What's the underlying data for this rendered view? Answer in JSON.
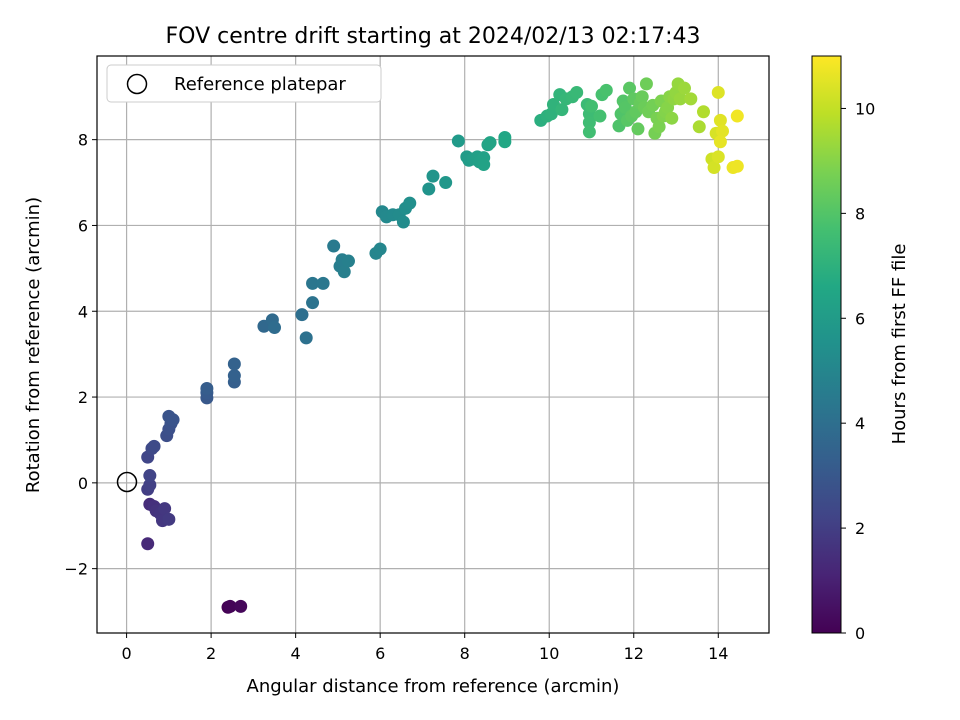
{
  "chart_data": {
    "type": "scatter",
    "title": "FOV centre drift starting at 2024/02/13 02:17:43",
    "xlabel": "Angular distance from reference (arcmin)",
    "ylabel": "Rotation from reference (arcmin)",
    "colorbar_label": "Hours from first FF file",
    "xlim": [
      -0.7,
      15.2
    ],
    "ylim": [
      -3.5,
      9.95
    ],
    "x_ticks": [
      0,
      2,
      4,
      6,
      8,
      10,
      12,
      14
    ],
    "y_ticks": [
      -2,
      0,
      2,
      4,
      6,
      8
    ],
    "colorbar_range": [
      0,
      11
    ],
    "colorbar_ticks": [
      0,
      2,
      4,
      6,
      8,
      10
    ],
    "colormap": "viridis",
    "grid": true,
    "legend": {
      "placement": "top-left",
      "entries": [
        "Reference platepar"
      ]
    },
    "reference_point": {
      "x": 0,
      "y": 0,
      "label": "Reference platepar"
    },
    "points": [
      [
        2.4,
        -2.9,
        0.0
      ],
      [
        2.45,
        -2.88,
        0.1
      ],
      [
        2.7,
        -2.88,
        0.2
      ],
      [
        0.5,
        -1.42,
        1.3
      ],
      [
        0.55,
        -0.5,
        1.4
      ],
      [
        0.65,
        -0.55,
        1.5
      ],
      [
        0.7,
        -0.65,
        1.6
      ],
      [
        0.8,
        -0.72,
        1.7
      ],
      [
        0.85,
        -0.88,
        1.75
      ],
      [
        0.9,
        -0.6,
        1.8
      ],
      [
        1.0,
        -0.85,
        1.85
      ],
      [
        0.5,
        -0.15,
        2.0
      ],
      [
        0.55,
        -0.05,
        2.1
      ],
      [
        0.55,
        0.17,
        2.2
      ],
      [
        0.5,
        0.6,
        2.3
      ],
      [
        0.6,
        0.8,
        2.4
      ],
      [
        0.65,
        0.85,
        2.45
      ],
      [
        0.95,
        1.1,
        2.6
      ],
      [
        1.0,
        1.25,
        2.7
      ],
      [
        1.05,
        1.38,
        2.75
      ],
      [
        1.0,
        1.55,
        2.8
      ],
      [
        1.1,
        1.47,
        2.85
      ],
      [
        1.9,
        1.98,
        3.0
      ],
      [
        1.9,
        2.1,
        3.1
      ],
      [
        1.9,
        2.2,
        3.2
      ],
      [
        2.55,
        2.35,
        3.3
      ],
      [
        2.55,
        2.5,
        3.4
      ],
      [
        2.55,
        2.77,
        3.45
      ],
      [
        3.25,
        3.65,
        3.7
      ],
      [
        3.45,
        3.8,
        3.8
      ],
      [
        3.5,
        3.62,
        3.85
      ],
      [
        4.15,
        3.92,
        4.0
      ],
      [
        4.25,
        3.38,
        4.1
      ],
      [
        4.4,
        4.2,
        4.2
      ],
      [
        4.4,
        4.65,
        4.3
      ],
      [
        4.65,
        4.65,
        4.35
      ],
      [
        4.9,
        5.52,
        4.5
      ],
      [
        5.05,
        5.05,
        4.6
      ],
      [
        5.1,
        5.2,
        4.65
      ],
      [
        5.15,
        4.92,
        4.7
      ],
      [
        5.25,
        5.17,
        4.75
      ],
      [
        5.9,
        5.35,
        4.95
      ],
      [
        6.0,
        5.45,
        5.0
      ],
      [
        6.05,
        6.32,
        5.1
      ],
      [
        6.15,
        6.2,
        5.15
      ],
      [
        6.3,
        6.25,
        5.2
      ],
      [
        6.45,
        6.25,
        5.25
      ],
      [
        6.55,
        6.08,
        5.3
      ],
      [
        6.6,
        6.4,
        5.35
      ],
      [
        6.7,
        6.52,
        5.4
      ],
      [
        7.15,
        6.85,
        5.6
      ],
      [
        7.25,
        7.15,
        5.7
      ],
      [
        7.55,
        7.0,
        5.8
      ],
      [
        7.85,
        7.97,
        5.95
      ],
      [
        8.05,
        7.6,
        6.0
      ],
      [
        8.1,
        7.52,
        6.05
      ],
      [
        8.2,
        7.55,
        6.1
      ],
      [
        8.3,
        7.6,
        6.15
      ],
      [
        8.35,
        7.48,
        6.2
      ],
      [
        8.45,
        7.58,
        6.25
      ],
      [
        8.45,
        7.42,
        6.3
      ],
      [
        8.55,
        7.88,
        6.35
      ],
      [
        8.6,
        7.93,
        6.4
      ],
      [
        8.95,
        8.05,
        6.5
      ],
      [
        8.95,
        7.95,
        6.55
      ],
      [
        9.8,
        8.45,
        6.9
      ],
      [
        9.95,
        8.55,
        7.0
      ],
      [
        10.05,
        8.6,
        7.05
      ],
      [
        10.1,
        8.82,
        7.1
      ],
      [
        10.25,
        9.05,
        7.15
      ],
      [
        10.3,
        8.7,
        7.2
      ],
      [
        10.4,
        8.95,
        7.25
      ],
      [
        10.55,
        9.0,
        7.3
      ],
      [
        10.65,
        9.1,
        7.35
      ],
      [
        10.9,
        8.82,
        7.45
      ],
      [
        10.95,
        8.6,
        7.5
      ],
      [
        10.95,
        8.4,
        7.55
      ],
      [
        10.95,
        8.18,
        7.6
      ],
      [
        11.0,
        8.78,
        7.65
      ],
      [
        11.2,
        8.55,
        7.7
      ],
      [
        11.25,
        9.05,
        7.75
      ],
      [
        11.35,
        9.15,
        7.8
      ],
      [
        11.65,
        8.32,
        7.9
      ],
      [
        11.7,
        8.6,
        7.95
      ],
      [
        11.75,
        8.9,
        8.0
      ],
      [
        11.8,
        8.75,
        8.05
      ],
      [
        11.85,
        8.45,
        8.1
      ],
      [
        11.9,
        9.2,
        8.15
      ],
      [
        11.95,
        8.55,
        8.2
      ],
      [
        12.0,
        8.95,
        8.25
      ],
      [
        12.05,
        8.65,
        8.3
      ],
      [
        12.1,
        8.25,
        8.35
      ],
      [
        12.15,
        8.85,
        8.4
      ],
      [
        12.2,
        9.0,
        8.45
      ],
      [
        12.25,
        8.75,
        8.5
      ],
      [
        12.3,
        9.3,
        8.55
      ],
      [
        12.35,
        8.65,
        8.6
      ],
      [
        12.45,
        8.8,
        8.65
      ],
      [
        12.5,
        8.15,
        8.7
      ],
      [
        12.55,
        8.5,
        8.75
      ],
      [
        12.6,
        8.3,
        8.8
      ],
      [
        12.65,
        8.9,
        8.85
      ],
      [
        12.7,
        8.55,
        8.9
      ],
      [
        12.75,
        8.65,
        8.95
      ],
      [
        12.8,
        8.75,
        9.0
      ],
      [
        12.85,
        9.0,
        9.05
      ],
      [
        12.9,
        8.5,
        9.1
      ],
      [
        12.95,
        8.95,
        9.15
      ],
      [
        13.0,
        9.1,
        9.2
      ],
      [
        13.05,
        9.3,
        9.25
      ],
      [
        13.1,
        8.95,
        9.3
      ],
      [
        13.2,
        9.2,
        9.35
      ],
      [
        13.35,
        8.95,
        9.45
      ],
      [
        13.55,
        8.3,
        9.6
      ],
      [
        13.65,
        8.65,
        9.7
      ],
      [
        13.85,
        7.55,
        10.2
      ],
      [
        13.9,
        7.35,
        10.3
      ],
      [
        13.95,
        8.15,
        10.35
      ],
      [
        14.0,
        7.6,
        10.4
      ],
      [
        14.0,
        9.1,
        10.45
      ],
      [
        14.05,
        8.45,
        10.5
      ],
      [
        14.1,
        8.2,
        10.55
      ],
      [
        14.05,
        7.95,
        10.6
      ],
      [
        14.35,
        7.35,
        10.7
      ],
      [
        14.45,
        7.38,
        10.75
      ],
      [
        14.45,
        8.55,
        10.8
      ]
    ]
  }
}
